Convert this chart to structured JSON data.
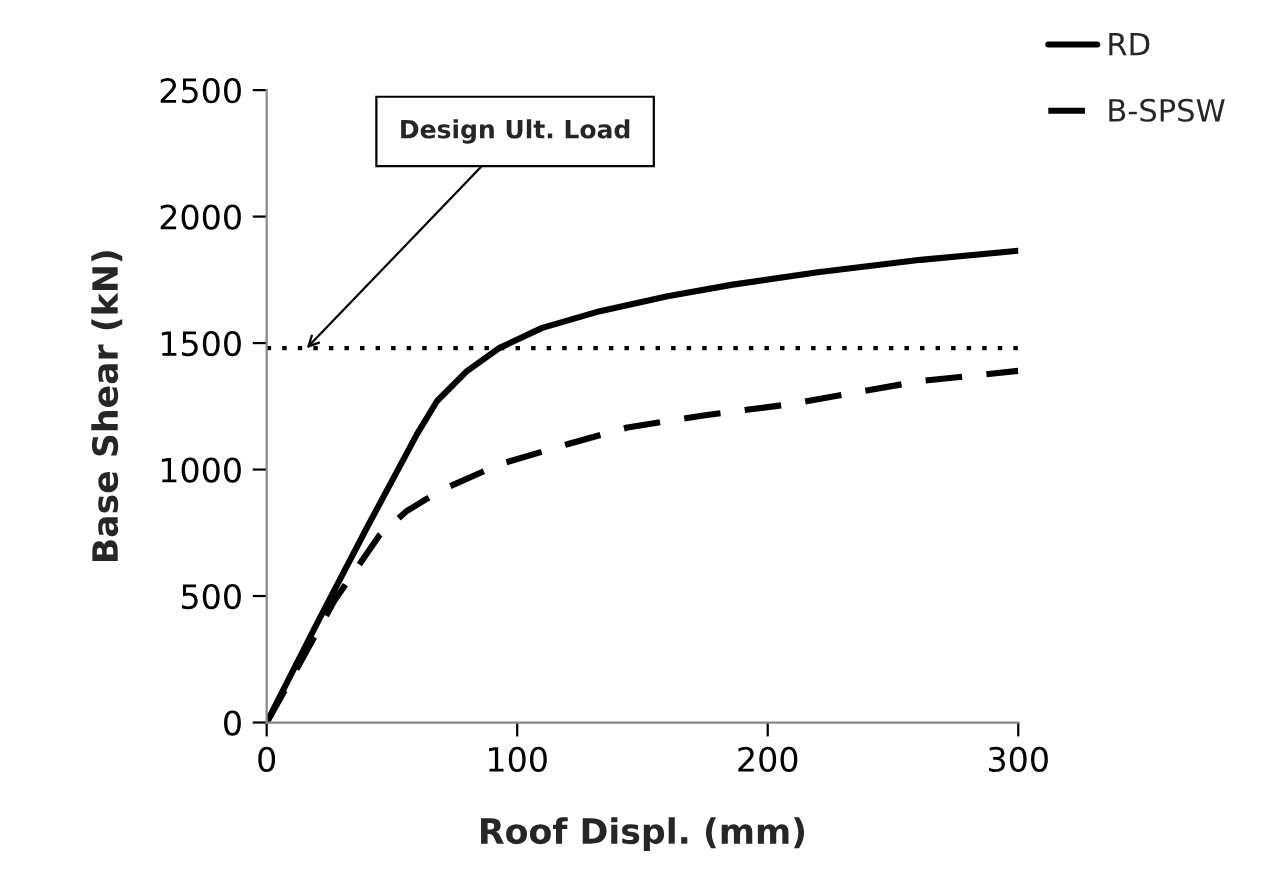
{
  "chart_data": {
    "type": "line",
    "xlabel": "Roof Displ. (mm)",
    "ylabel": "Base Shear (kN)",
    "xlim": [
      0,
      300
    ],
    "xticks": [
      0,
      100,
      200,
      300
    ],
    "ylim": [
      0,
      2500
    ],
    "yticks": [
      0,
      500,
      1000,
      1500,
      2000,
      2500
    ],
    "grid": false,
    "legend": "top right",
    "marker": "none",
    "series": [
      {
        "name": "RD",
        "color": "#000000",
        "line_style": "solid",
        "x": [
          0,
          20,
          40,
          60,
          68,
          80,
          93,
          110,
          133,
          160,
          186,
          220,
          261,
          300
        ],
        "values": [
          0,
          390,
          770,
          1140,
          1271,
          1390,
          1481,
          1560,
          1626,
          1685,
          1731,
          1780,
          1829,
          1865
        ]
      },
      {
        "name": "B-SPSW",
        "color": "#000000",
        "line_style": "dashed",
        "x": [
          0,
          8,
          27,
          45,
          56,
          70,
          93,
          120,
          144,
          175,
          208,
          261,
          300
        ],
        "values": [
          0,
          140,
          481,
          740,
          837,
          920,
          1021,
          1100,
          1166,
          1215,
          1257,
          1350,
          1390
        ]
      }
    ],
    "ref_lines": [
      {
        "axis": "y",
        "value": 1480,
        "color": "#000000",
        "line_style": "dotted"
      }
    ],
    "annotations": [
      {
        "text": "Design Ult. Load",
        "x": 16,
        "y": 1480
      }
    ]
  }
}
